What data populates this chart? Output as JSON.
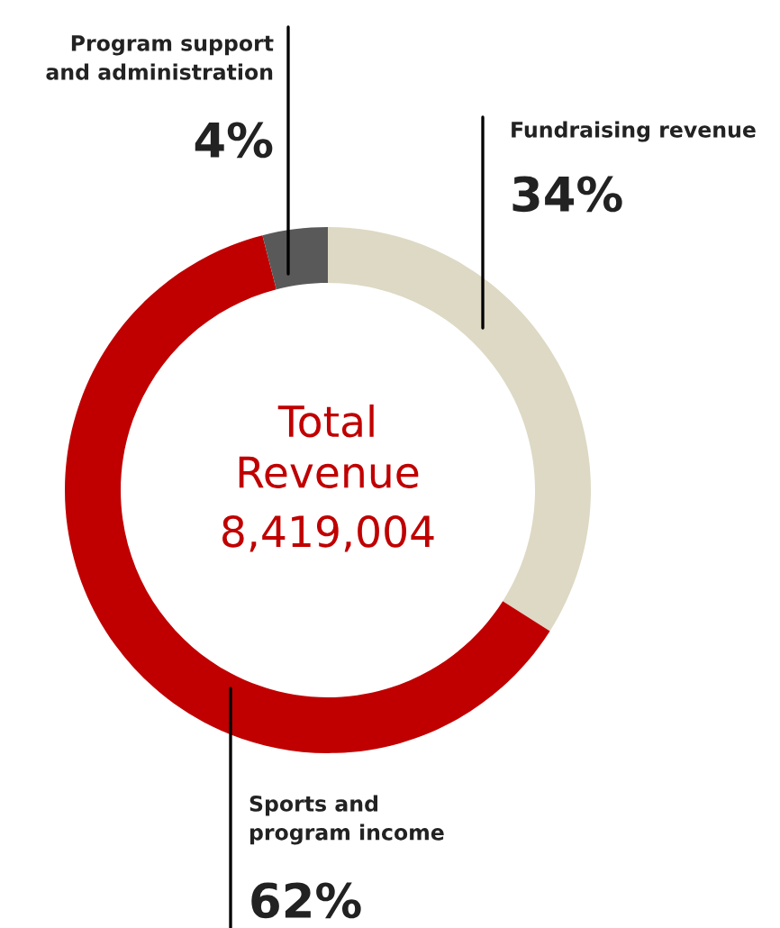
{
  "chart_data": {
    "type": "donut",
    "title": "Total Revenue",
    "annotations": [
      "8,419,004"
    ],
    "categories": [
      "Fundraising revenue",
      "Sports and program income",
      "Program support and administration"
    ],
    "values": [
      34,
      62,
      4
    ],
    "colors": [
      "#ddd9c4",
      "#c00000",
      "#595959"
    ],
    "value_labels": [
      "34%",
      "62%",
      "4%"
    ],
    "legend": false
  }
}
